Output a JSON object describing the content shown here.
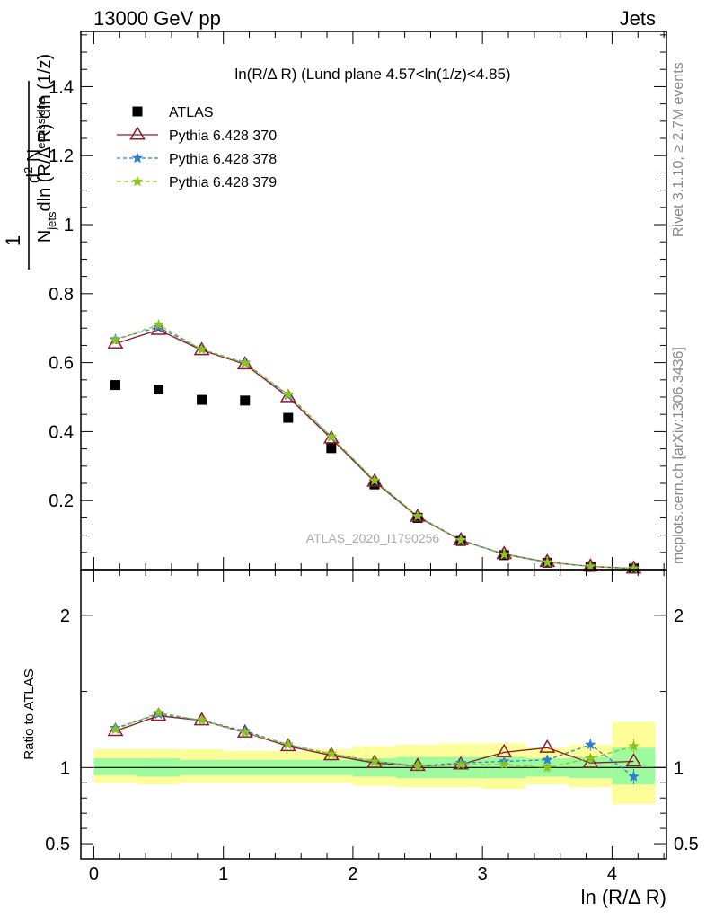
{
  "header": {
    "left": "13000 GeV pp",
    "right": "Jets"
  },
  "side_labels": {
    "rivet": "Rivet 3.1.10, ≥ 2.7M events",
    "mcplots": "mcplots.cern.ch [arXiv:1306.3436]"
  },
  "watermark": "ATLAS_2020_I1790256",
  "chart_data": {
    "type": "scatter",
    "title": "ln(R/Δ R) (Lund plane 4.57<ln(1/z)<4.85)",
    "ylabel": "1/N_jets d²N_emissions / dln(R/Δ R) dln(1/z)",
    "xlabel": "ln (R/Δ R)",
    "xlim": [
      -0.1,
      4.42
    ],
    "ylim": [
      0,
      1.56
    ],
    "x_ticks": [
      "0",
      "1",
      "2",
      "3",
      "4"
    ],
    "y_ticks": [
      "0.2",
      "0.4",
      "0.6",
      "0.8",
      "1",
      "1.2",
      "1.4"
    ],
    "y_tick_values": [
      0.2,
      0.4,
      0.6,
      0.8,
      1.0,
      1.2,
      1.4
    ],
    "grid": false,
    "legend_position": "top-left",
    "x": [
      0.167,
      0.5,
      0.833,
      1.167,
      1.5,
      1.833,
      2.167,
      2.5,
      2.833,
      3.167,
      3.5,
      3.833,
      4.167
    ],
    "series": [
      {
        "name": "ATLAS",
        "style": "data",
        "color": "#000000",
        "values": [
          0.535,
          0.522,
          0.492,
          0.49,
          0.44,
          0.352,
          0.247,
          0.15,
          0.083,
          0.042,
          0.02,
          0.008,
          0.003
        ]
      },
      {
        "name": "Pythia 6.428 370",
        "style": "triangle",
        "color": "#8b1a2b",
        "values": [
          0.655,
          0.695,
          0.636,
          0.595,
          0.5,
          0.38,
          0.255,
          0.153,
          0.085,
          0.045,
          0.022,
          0.009,
          0.003
        ]
      },
      {
        "name": "Pythia 6.428 378",
        "style": "star",
        "color": "#2a7fd4",
        "values": [
          0.668,
          0.703,
          0.638,
          0.6,
          0.505,
          0.385,
          0.258,
          0.155,
          0.086,
          0.044,
          0.021,
          0.009,
          0.003
        ]
      },
      {
        "name": "Pythia 6.428 379",
        "style": "star",
        "color": "#8dc31e",
        "values": [
          0.665,
          0.71,
          0.638,
          0.598,
          0.508,
          0.385,
          0.258,
          0.155,
          0.085,
          0.044,
          0.021,
          0.009,
          0.003
        ]
      }
    ],
    "ratio": {
      "ylabel": "Ratio to ATLAS",
      "ylim": [
        0.4,
        2.3
      ],
      "y_ticks": [
        "0.5",
        "1",
        "2"
      ],
      "y_tick_values": [
        0.5,
        1.0,
        2.0
      ],
      "bin_edges": [
        0,
        0.333,
        0.667,
        1.0,
        1.333,
        1.667,
        2.0,
        2.333,
        2.667,
        3.0,
        3.333,
        3.667,
        4.0,
        4.333
      ],
      "band_inner": [
        [
          0.95,
          1.06
        ],
        [
          0.94,
          1.06
        ],
        [
          0.95,
          1.05
        ],
        [
          0.95,
          1.05
        ],
        [
          0.95,
          1.05
        ],
        [
          0.95,
          1.05
        ],
        [
          0.94,
          1.06
        ],
        [
          0.93,
          1.07
        ],
        [
          0.93,
          1.07
        ],
        [
          0.93,
          1.07
        ],
        [
          0.94,
          1.06
        ],
        [
          0.93,
          1.07
        ],
        [
          0.89,
          1.13
        ]
      ],
      "band_outer": [
        [
          0.9,
          1.12
        ],
        [
          0.89,
          1.12
        ],
        [
          0.9,
          1.12
        ],
        [
          0.9,
          1.11
        ],
        [
          0.9,
          1.11
        ],
        [
          0.9,
          1.12
        ],
        [
          0.88,
          1.14
        ],
        [
          0.87,
          1.15
        ],
        [
          0.87,
          1.16
        ],
        [
          0.86,
          1.16
        ],
        [
          0.89,
          1.13
        ],
        [
          0.87,
          1.15
        ],
        [
          0.76,
          1.3
        ]
      ],
      "series": [
        {
          "name": "Pythia 6.428 370",
          "style": "triangle",
          "color": "#8b1a2b",
          "values": [
            1.24,
            1.34,
            1.31,
            1.23,
            1.14,
            1.08,
            1.03,
            1.01,
            1.02,
            1.1,
            1.13,
            1.03,
            1.04
          ]
        },
        {
          "name": "Pythia 6.428 378",
          "style": "star",
          "color": "#2a7fd4",
          "values": [
            1.26,
            1.35,
            1.31,
            1.24,
            1.15,
            1.09,
            1.04,
            1.01,
            1.03,
            1.04,
            1.05,
            1.15,
            0.94
          ]
        },
        {
          "name": "Pythia 6.428 379",
          "style": "star",
          "color": "#8dc31e",
          "values": [
            1.25,
            1.36,
            1.31,
            1.23,
            1.15,
            1.09,
            1.04,
            1.01,
            1.02,
            1.02,
            1.0,
            1.06,
            1.14
          ]
        }
      ],
      "errors_378": [
        0.01,
        0.01,
        0.01,
        0.01,
        0.01,
        0.01,
        0.01,
        0.01,
        0.01,
        0.02,
        0.03,
        0.04,
        0.05
      ],
      "errors_379": [
        0.01,
        0.01,
        0.01,
        0.01,
        0.01,
        0.01,
        0.01,
        0.01,
        0.01,
        0.02,
        0.03,
        0.03,
        0.05
      ]
    }
  }
}
